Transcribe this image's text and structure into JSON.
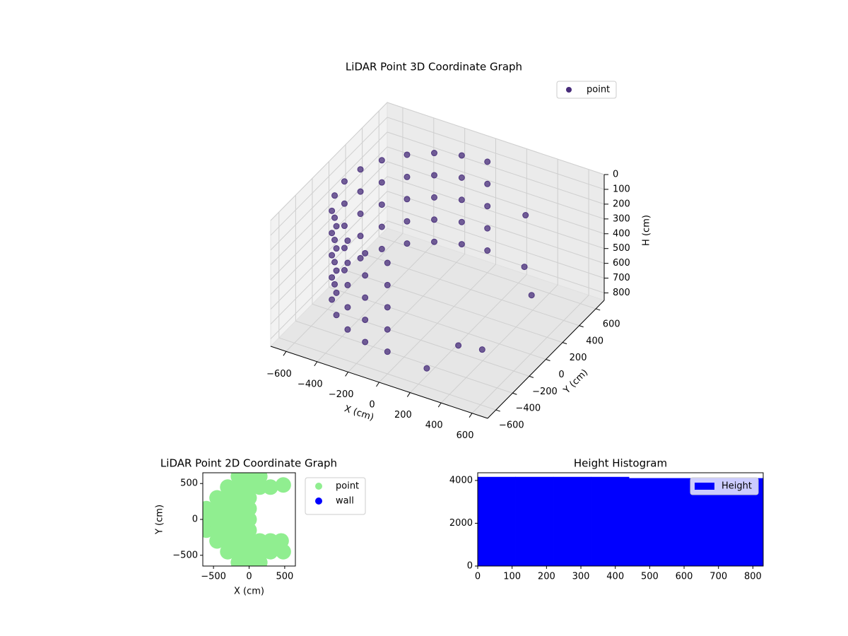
{
  "chart_data": [
    {
      "type": "scatter3d",
      "title": "LiDAR Point 3D Coordinate Graph",
      "xlabel": "X (cm)",
      "ylabel": "Y (cm)",
      "zlabel": "H (cm)",
      "xlim": [
        -700,
        700
      ],
      "ylim": [
        -700,
        700
      ],
      "zlim": [
        850,
        0
      ],
      "xticks": [
        {
          "value": -600,
          "label": "−600"
        },
        {
          "value": -400,
          "label": "−400"
        },
        {
          "value": -200,
          "label": "−200"
        },
        0,
        200,
        400,
        600
      ],
      "yticks": [
        {
          "value": -600,
          "label": "−600"
        },
        {
          "value": -400,
          "label": "−400"
        },
        {
          "value": -200,
          "label": "−200"
        },
        0,
        200,
        400,
        600
      ],
      "zticks": [
        0,
        100,
        200,
        300,
        400,
        500,
        600,
        700,
        800
      ],
      "grid": true,
      "legend": "upper right",
      "series": [
        {
          "name": "point",
          "color": "#472c7a",
          "x": [
            0,
            -155,
            -300,
            -424,
            -520,
            -580,
            -600,
            -580,
            -520,
            -424,
            -300,
            -155,
            0,
            0,
            -155,
            -300,
            -424,
            -520,
            -580,
            -600,
            -580,
            -520,
            -424,
            -300,
            -155,
            0,
            0,
            -155,
            -300,
            -424,
            -520,
            -580,
            -600,
            -580,
            -520,
            -424,
            -300,
            -155,
            0,
            0,
            -155,
            -300,
            -424,
            -520,
            -580,
            -600,
            -580,
            -520,
            -424,
            -300,
            -155,
            0,
            0,
            -155,
            -300,
            -424,
            -520,
            -580,
            -600,
            -580,
            -520,
            -424,
            -300,
            -155,
            0,
            300,
            400,
            500,
            450,
            350,
            200
          ],
          "y": [
            600,
            580,
            520,
            424,
            300,
            155,
            0,
            -155,
            -300,
            -424,
            -520,
            -580,
            -600,
            600,
            580,
            520,
            424,
            300,
            155,
            0,
            -155,
            -300,
            -424,
            -520,
            -580,
            -600,
            600,
            580,
            520,
            424,
            300,
            155,
            0,
            -155,
            -300,
            -424,
            -520,
            -580,
            -600,
            600,
            580,
            520,
            424,
            300,
            155,
            0,
            -155,
            -300,
            -424,
            -520,
            -580,
            -600,
            600,
            580,
            520,
            424,
            300,
            155,
            0,
            -155,
            -300,
            -424,
            -520,
            -580,
            -600,
            500,
            300,
            200,
            -300,
            -400,
            -500
          ],
          "z": [
            100,
            100,
            100,
            100,
            100,
            100,
            100,
            100,
            100,
            100,
            100,
            100,
            100,
            250,
            250,
            250,
            250,
            250,
            250,
            250,
            250,
            250,
            250,
            250,
            250,
            250,
            400,
            400,
            400,
            400,
            400,
            400,
            400,
            400,
            400,
            400,
            400,
            400,
            400,
            550,
            550,
            550,
            550,
            550,
            550,
            550,
            550,
            550,
            550,
            550,
            550,
            550,
            700,
            700,
            700,
            700,
            700,
            700,
            700,
            700,
            700,
            700,
            700,
            700,
            700,
            300,
            500,
            600,
            700,
            650,
            800
          ]
        }
      ]
    },
    {
      "type": "scatter",
      "title": "LiDAR Point 2D Coordinate Graph",
      "xlabel": "X (cm)",
      "ylabel": "Y (cm)",
      "xlim": [
        -650,
        650
      ],
      "ylim": [
        -650,
        650
      ],
      "xticks": [
        {
          "value": -500,
          "label": "−500"
        },
        0,
        500
      ],
      "yticks": [
        {
          "value": -500,
          "label": "−500"
        },
        0,
        500
      ],
      "legend": "outside upper right",
      "series": [
        {
          "name": "point",
          "color": "#90ee90",
          "x": [
            -600,
            -600,
            -600,
            -450,
            -450,
            -450,
            -450,
            -450,
            -300,
            -300,
            -300,
            -300,
            -300,
            -300,
            -300,
            -150,
            -150,
            -150,
            -150,
            -150,
            -150,
            -150,
            -150,
            -150,
            0,
            0,
            0,
            0,
            0,
            0,
            0,
            0,
            0,
            150,
            150,
            150,
            150,
            150,
            300,
            300,
            300,
            450,
            480,
            480
          ],
          "y": [
            -150,
            0,
            150,
            -300,
            -150,
            0,
            150,
            300,
            -450,
            -300,
            -150,
            0,
            150,
            300,
            450,
            -600,
            -450,
            -300,
            -150,
            0,
            150,
            300,
            450,
            600,
            -600,
            -450,
            -300,
            -150,
            0,
            150,
            300,
            450,
            600,
            -600,
            -450,
            -300,
            450,
            600,
            -450,
            -300,
            450,
            -300,
            -450,
            480
          ]
        },
        {
          "name": "wall",
          "color": "#0000ff",
          "x": [],
          "y": []
        }
      ]
    },
    {
      "type": "histogram",
      "title": "Height Histogram",
      "bins": [
        0,
        110,
        220,
        330,
        440,
        550,
        660,
        770,
        830
      ],
      "series": [
        {
          "name": "Height",
          "color": "#0000ff",
          "values": [
            4160,
            4160,
            4160,
            4160,
            4100,
            4100,
            4100,
            4100
          ]
        }
      ],
      "xlim": [
        0,
        830
      ],
      "ylim": [
        0,
        4360
      ],
      "xticks": [
        0,
        100,
        200,
        300,
        400,
        500,
        600,
        700,
        800
      ],
      "yticks": [
        0,
        2000,
        4000
      ],
      "legend": "upper right"
    }
  ]
}
